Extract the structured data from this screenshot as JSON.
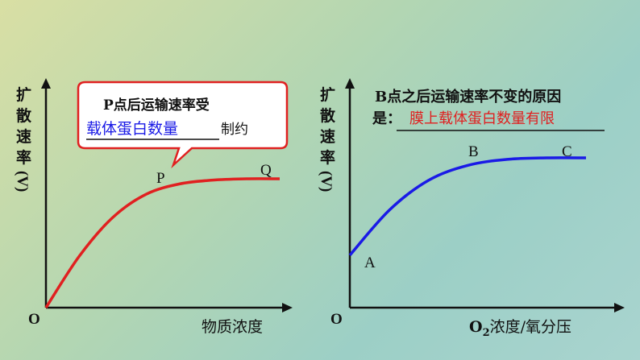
{
  "charts": {
    "left": {
      "ylabel_chars": [
        "扩",
        "散",
        "速",
        "率"
      ],
      "ylabel_unit": "(V)",
      "origin": "O",
      "xlabel": "物质浓度",
      "point_p": "P",
      "point_q": "Q",
      "callout": {
        "line1": "P点后运输速率受",
        "blank_answer": "载体蛋白数量",
        "suffix": "制约"
      }
    },
    "right": {
      "ylabel_chars": [
        "扩",
        "散",
        "速",
        "率"
      ],
      "ylabel_unit": "(V)",
      "origin": "O",
      "xlabel_o": "O",
      "xlabel_sub": "2",
      "xlabel_rest": "浓度/氧分压",
      "point_a": "A",
      "point_b": "B",
      "point_c": "C",
      "note": {
        "line1": "B点之后运输速率不变的原因",
        "prefix": "是：",
        "answer": "膜上载体蛋白数量有限"
      }
    }
  },
  "colors": {
    "left_curve": "#e02020",
    "right_curve": "#1a1ae6",
    "axis": "#111111",
    "callout_border": "#e02020",
    "blank_answer": "#1a1ae6",
    "note_answer": "#e02020"
  },
  "chart_data": [
    {
      "type": "line",
      "series": [
        {
          "values": [
            0,
            40,
            70,
            88,
            96,
            99,
            100,
            100
          ]
        }
      ],
      "x": [
        0,
        1,
        2,
        3,
        4,
        5,
        6,
        7
      ],
      "labels": [
        "P",
        "Q"
      ],
      "xlabel": "物质浓度",
      "ylabel": "扩散速率(V)"
    },
    {
      "type": "line",
      "series": [
        {
          "values": [
            35,
            65,
            85,
            95,
            99,
            100,
            100
          ]
        }
      ],
      "x": [
        0,
        1,
        2,
        3,
        4,
        5,
        6
      ],
      "labels": [
        "A",
        "B",
        "C"
      ],
      "xlabel": "O2浓度/氧分压",
      "ylabel": "扩散速率(V)"
    }
  ]
}
